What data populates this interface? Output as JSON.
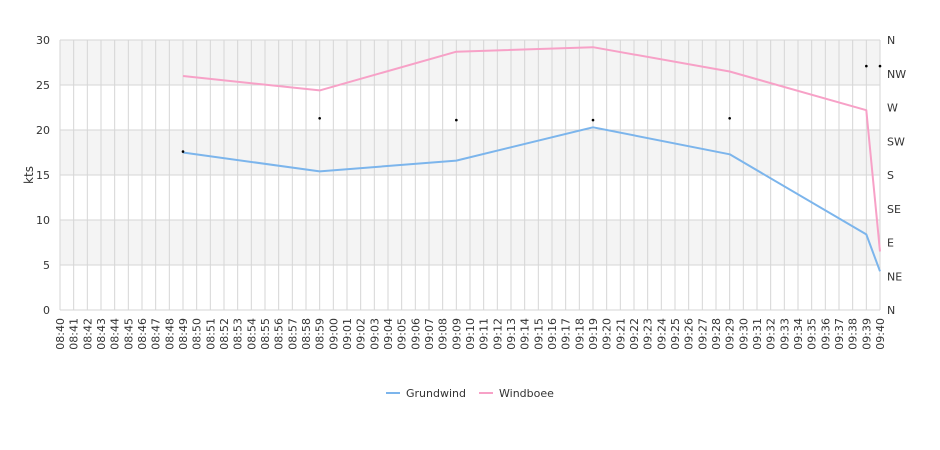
{
  "chart_data": {
    "type": "line",
    "ylabel": "kts",
    "ylim": [
      0,
      30
    ],
    "y_ticks": [
      0,
      5,
      10,
      15,
      20,
      25,
      30
    ],
    "right_axis_ticks": [
      "N",
      "NE",
      "E",
      "SE",
      "S",
      "SW",
      "W",
      "NW",
      "N"
    ],
    "x_ticks": [
      "08:40",
      "08:41",
      "08:42",
      "08:43",
      "08:44",
      "08:45",
      "08:46",
      "08:47",
      "08:48",
      "08:49",
      "08:50",
      "08:51",
      "08:52",
      "08:53",
      "08:54",
      "08:55",
      "08:56",
      "08:57",
      "08:58",
      "08:59",
      "09:00",
      "09:01",
      "09:02",
      "09:03",
      "09:04",
      "09:05",
      "09:06",
      "09:07",
      "09:08",
      "09:09",
      "09:10",
      "09:11",
      "09:12",
      "09:13",
      "09:14",
      "09:15",
      "09:16",
      "09:17",
      "09:18",
      "09:19",
      "09:20",
      "09:21",
      "09:22",
      "09:23",
      "09:24",
      "09:25",
      "09:26",
      "09:27",
      "09:28",
      "09:29",
      "09:30",
      "09:31",
      "09:32",
      "09:33",
      "09:34",
      "09:35",
      "09:36",
      "09:37",
      "09:38",
      "09:39",
      "09:40"
    ],
    "series": [
      {
        "name": "Grundwind",
        "color": "#7cb5ec",
        "x": [
          "08:49",
          "08:59",
          "09:09",
          "09:19",
          "09:29",
          "09:39",
          "09:40"
        ],
        "values": [
          17.5,
          15.4,
          16.6,
          20.3,
          17.3,
          8.4,
          4.3
        ]
      },
      {
        "name": "Windboee",
        "color": "#f7a1c7",
        "x": [
          "08:49",
          "08:59",
          "09:09",
          "09:19",
          "09:29",
          "09:39",
          "09:40"
        ],
        "values": [
          26.0,
          24.4,
          28.7,
          29.2,
          26.5,
          22.2,
          6.5
        ]
      }
    ],
    "direction_points": {
      "x": [
        "08:49",
        "08:59",
        "09:09",
        "09:19",
        "09:29",
        "09:39",
        "09:40"
      ],
      "values": [
        17.6,
        21.3,
        21.1,
        21.1,
        21.3,
        27.1,
        27.1
      ]
    },
    "grid": true,
    "legend": "bottom-center"
  }
}
